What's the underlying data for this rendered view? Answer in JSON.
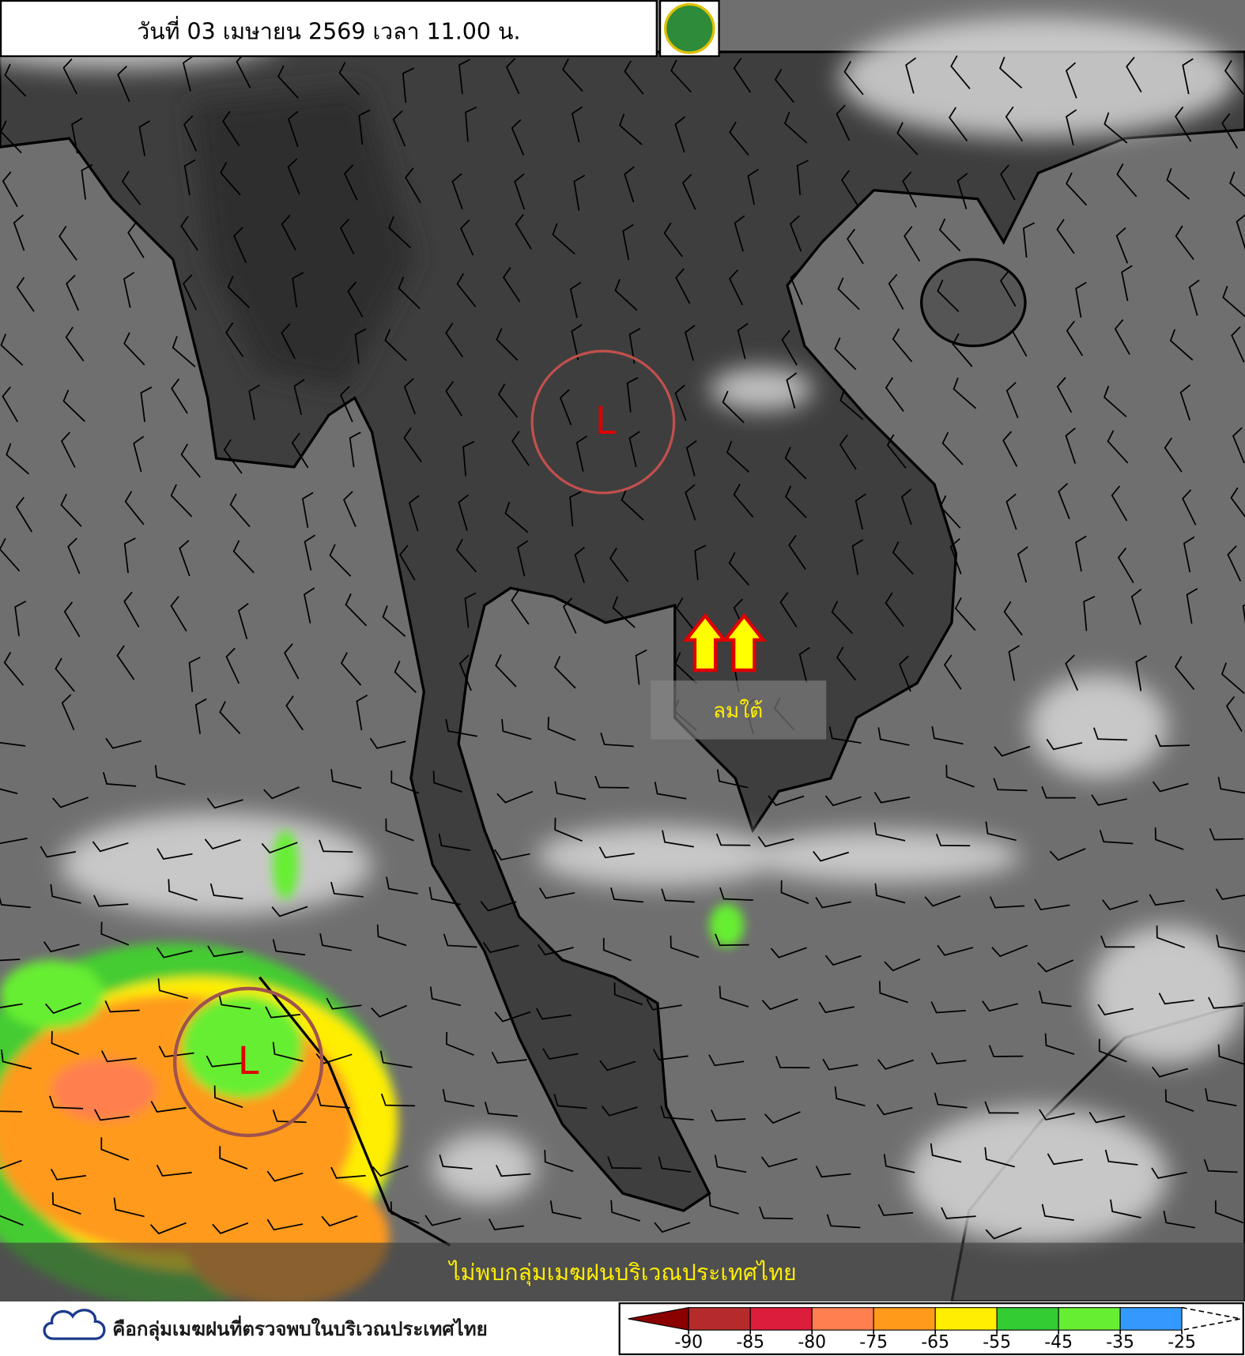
{
  "header": {
    "title": "วันที่ 03 เมษายน 2569 เวลา 11.00 น."
  },
  "annotations": {
    "lows": [
      "L",
      "L"
    ],
    "wind_label": "ลมใต้",
    "banner": "ไม่พบกลุ่มเมฆฝนบริเวณประเทศไทย"
  },
  "legend": {
    "cloud_label": "คือกลุ่มเมฆฝนที่ตรวจพบในบริเวณประเทศไทย",
    "colorbar": {
      "ticks": [
        -90,
        -85,
        -80,
        -75,
        -65,
        -55,
        -45,
        -35,
        -25
      ],
      "colors": [
        "#b52b2b",
        "#dc1e3c",
        "#ff7f50",
        "#ff9a1a",
        "#ffee00",
        "#33cc33",
        "#66ee33",
        "#3399ff"
      ],
      "low_color": "#8b0000"
    }
  }
}
